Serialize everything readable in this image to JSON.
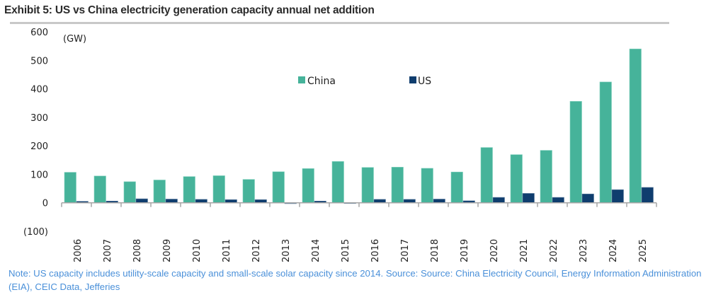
{
  "header": {
    "title": "Exhibit 5: US vs China electricity generation capacity annual net addition"
  },
  "footer": {
    "note": "Note: US capacity includes utility-scale capacity and small-scale solar capacity since 2014. Source: Source: China Electricity Council, Energy Information Administration (EIA), CEIC Data, Jefferies"
  },
  "colors": {
    "china": "#46b39a",
    "us": "#0f3d6e",
    "axis": "#a6a6a6",
    "note": "#4a90d9"
  },
  "chart_data": {
    "type": "bar",
    "title": "Exhibit 5: US vs China electricity generation capacity annual net addition",
    "xlabel": "",
    "ylabel": "(GW)",
    "unit_label": "(GW)",
    "ylim": [
      -100,
      600
    ],
    "yticks": [
      600,
      500,
      400,
      300,
      200,
      100,
      0,
      -100
    ],
    "ytick_labels": [
      "600",
      "500",
      "400",
      "300",
      "200",
      "100",
      "0",
      "(100)"
    ],
    "grid": false,
    "legend_position": "top-center",
    "categories": [
      "2006",
      "2007",
      "2008",
      "2009",
      "2010",
      "2011",
      "2012",
      "2013",
      "2014",
      "2015",
      "2016",
      "2017",
      "2018",
      "2019",
      "2020",
      "2021",
      "2022",
      "2023",
      "2024",
      "2025"
    ],
    "series": [
      {
        "name": "China",
        "color": "#46b39a",
        "values": [
          107,
          94,
          74,
          80,
          92,
          95,
          82,
          109,
          120,
          145,
          124,
          125,
          121,
          108,
          194,
          169,
          184,
          356,
          424,
          540
        ]
      },
      {
        "name": "US",
        "color": "#0f3d6e",
        "values": [
          5,
          6,
          14,
          13,
          12,
          11,
          11,
          -3,
          6,
          -2,
          12,
          12,
          13,
          7,
          19,
          33,
          19,
          31,
          46,
          54
        ]
      }
    ]
  }
}
